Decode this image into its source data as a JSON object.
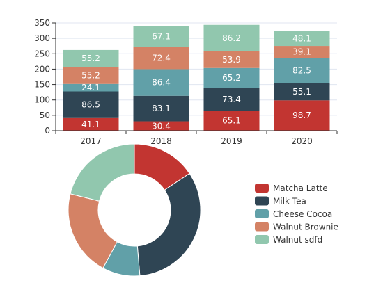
{
  "chart_data": [
    {
      "type": "bar",
      "stacked": true,
      "categories": [
        "2017",
        "2018",
        "2019",
        "2020"
      ],
      "ylim": [
        0,
        350
      ],
      "yticks": [
        0,
        50,
        100,
        150,
        200,
        250,
        300,
        350
      ],
      "grid": true,
      "series": [
        {
          "name": "Matcha Latte",
          "color": "#c23531",
          "values": [
            41.1,
            30.4,
            65.1,
            98.7
          ]
        },
        {
          "name": "Milk Tea",
          "color": "#2f4554",
          "values": [
            86.5,
            83.1,
            73.4,
            55.1
          ]
        },
        {
          "name": "Cheese Cocoa",
          "color": "#61a0a8",
          "values": [
            24.1,
            86.4,
            65.2,
            82.5
          ]
        },
        {
          "name": "Walnut Brownie",
          "color": "#d48265",
          "values": [
            55.2,
            72.4,
            53.9,
            39.1
          ]
        },
        {
          "name": "Walnut sdfd",
          "color": "#91c7ae",
          "values": [
            55.2,
            67.1,
            86.2,
            48.1
          ]
        }
      ]
    },
    {
      "type": "pie",
      "donut": true,
      "legend_position": "right",
      "labels": [
        "Matcha Latte",
        "Milk Tea",
        "Cheese Cocoa",
        "Walnut Brownie",
        "Walnut sdfd"
      ],
      "values": [
        41.1,
        86.5,
        24.1,
        55.2,
        55.2
      ],
      "colors": [
        "#c23531",
        "#2f4554",
        "#61a0a8",
        "#d48265",
        "#91c7ae"
      ]
    }
  ]
}
